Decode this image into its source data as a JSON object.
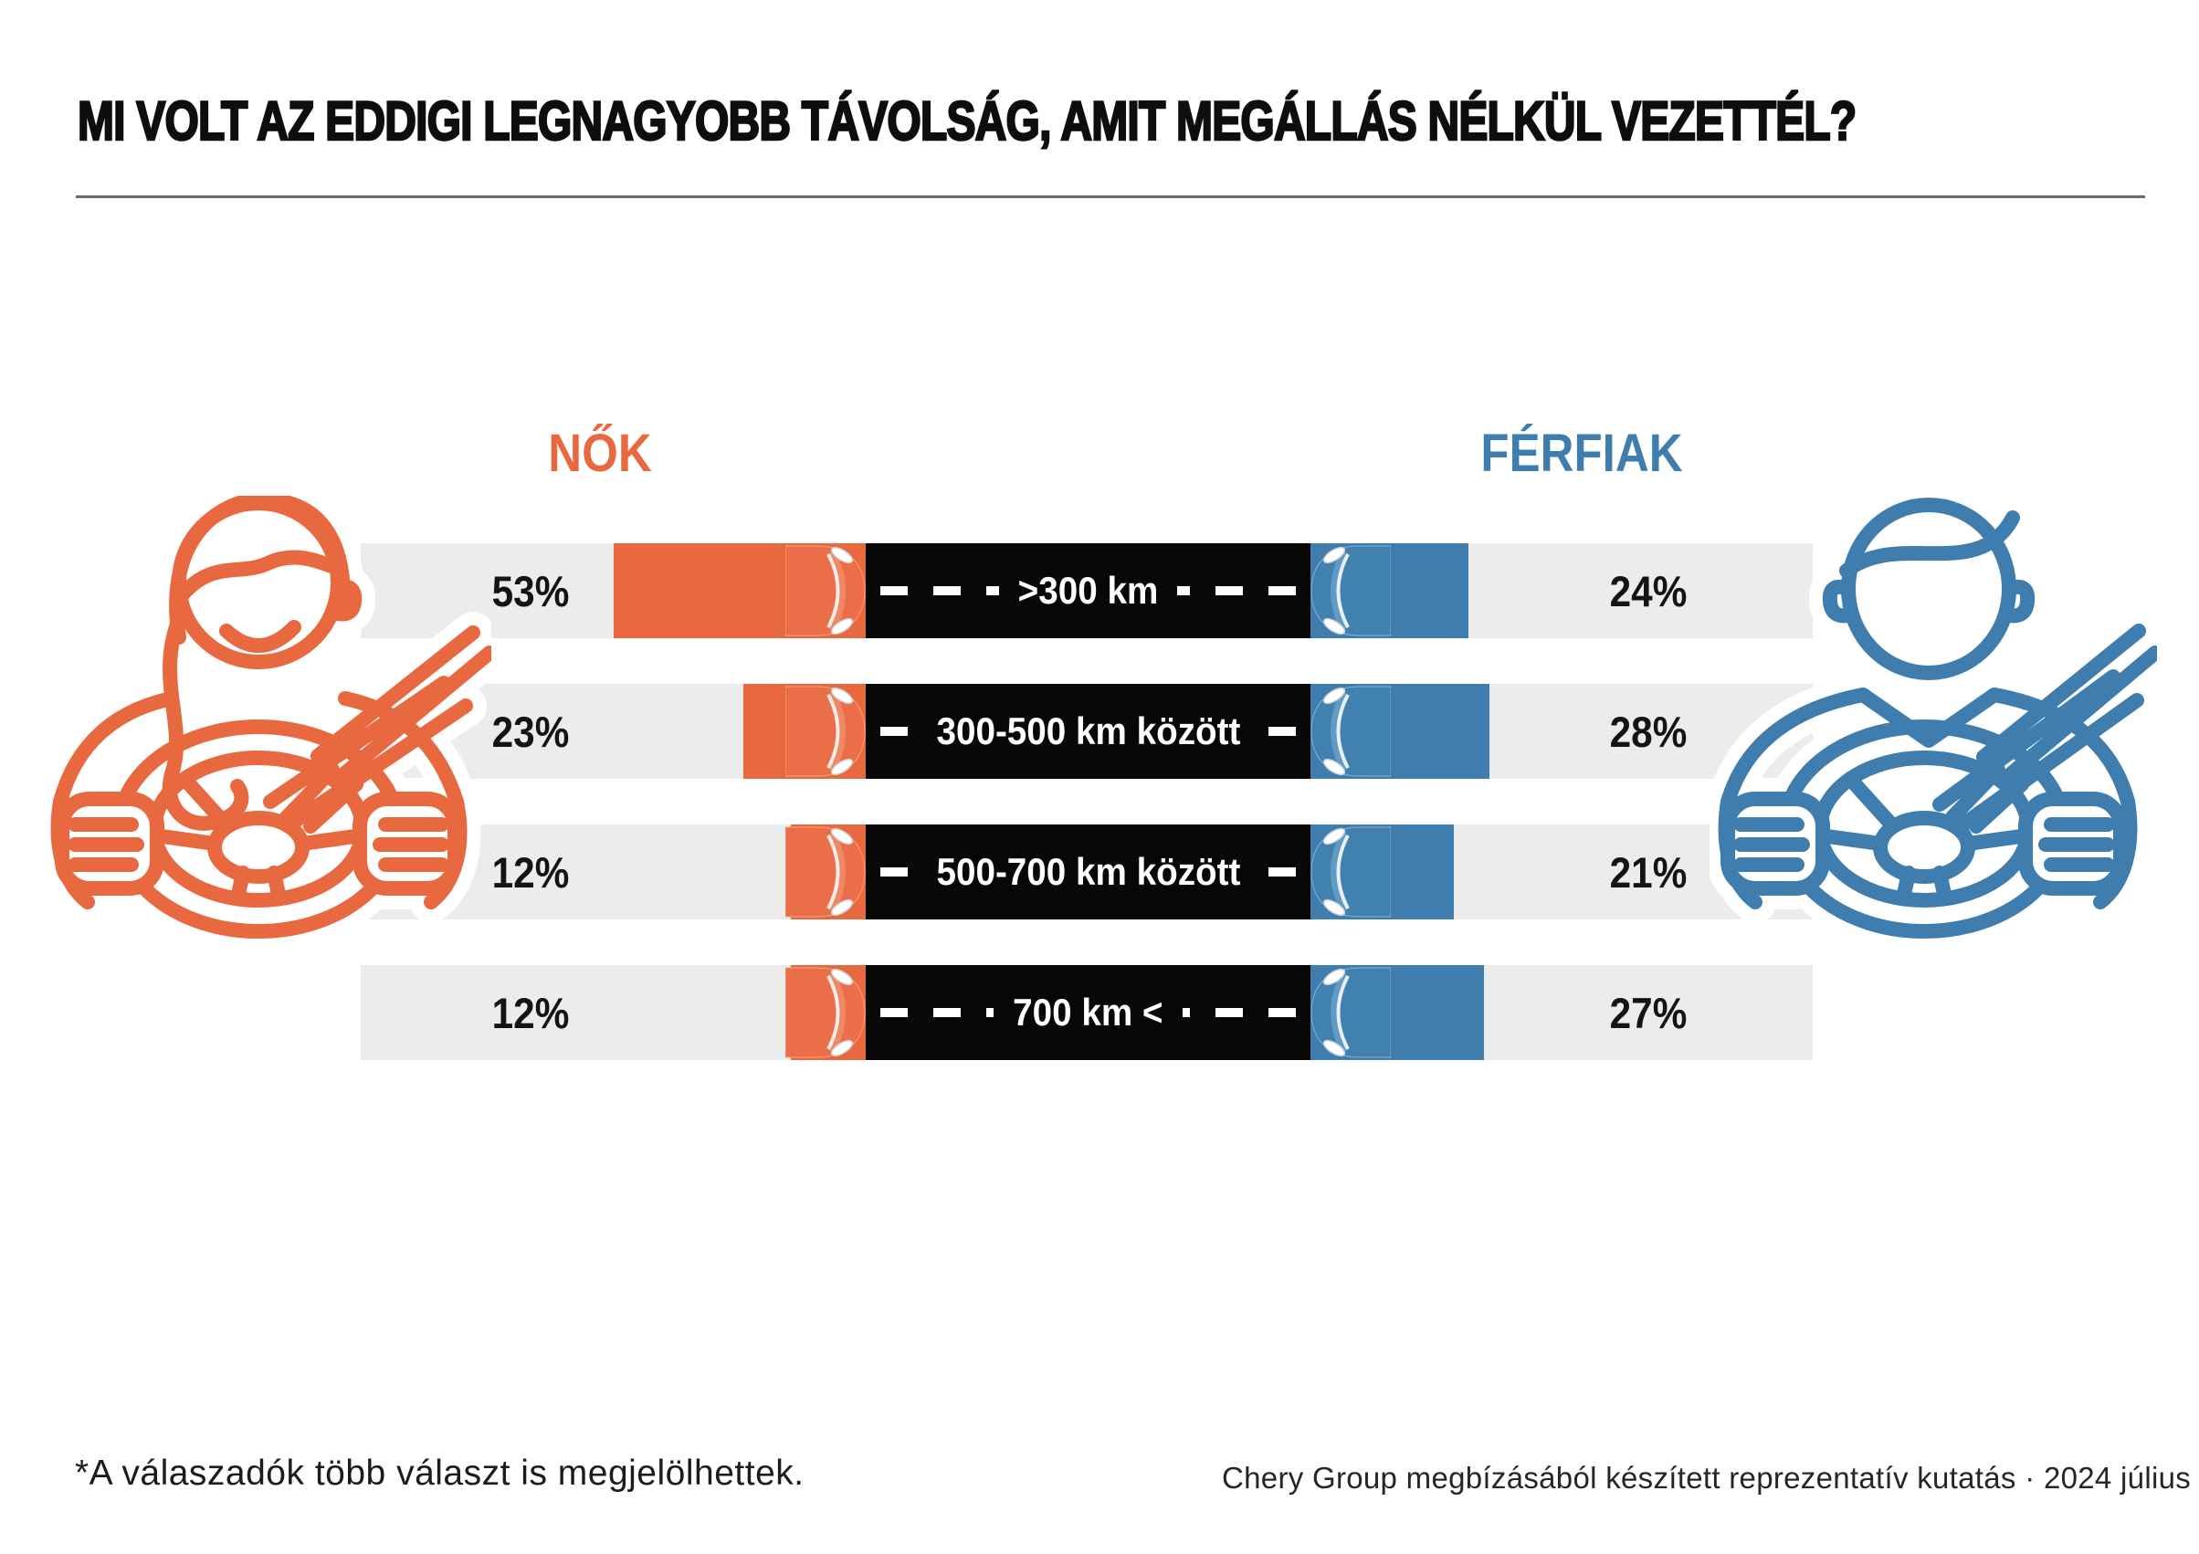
{
  "title": "MI VOLT AZ EDDIGI LEGNAGYOBB TÁVOLSÁG, AMIT MEGÁLLÁS NÉLKÜL VEZETTÉL?",
  "legend": {
    "women": "NŐK",
    "men": "FÉRFIAK"
  },
  "colors": {
    "women": "#E8693F",
    "men": "#3E7DAE",
    "road": "#070707",
    "band": "#ECECEC"
  },
  "rows": [
    {
      "women_pct": "53%",
      "distance": ">300 km",
      "men_pct": "24%"
    },
    {
      "women_pct": "23%",
      "distance": "300-500 km között",
      "men_pct": "28%"
    },
    {
      "women_pct": "12%",
      "distance": "500-700 km között",
      "men_pct": "21%"
    },
    {
      "women_pct": "12%",
      "distance": "700 km <",
      "men_pct": "27%"
    }
  ],
  "chart_data": {
    "type": "bar",
    "layout": "diverging-horizontal",
    "title": "MI VOLT AZ EDDIGI LEGNAGYOBB TÁVOLSÁG, AMIT MEGÁLLÁS NÉLKÜL VEZETTÉL?",
    "categories": [
      ">300 km",
      "300-500 km között",
      "500-700 km között",
      "700 km <"
    ],
    "series": [
      {
        "name": "NŐK",
        "color": "#E8693F",
        "values": [
          53,
          23,
          12,
          12
        ]
      },
      {
        "name": "FÉRFIAK",
        "color": "#3E7DAE",
        "values": [
          24,
          28,
          21,
          27
        ]
      }
    ],
    "unit": "%",
    "legend_position": "top"
  },
  "footnote": "*A válaszadók több választ is megjelölhettek.",
  "source": "Chery Group megbízásából készített reprezentatív kutatás · 2024 július"
}
